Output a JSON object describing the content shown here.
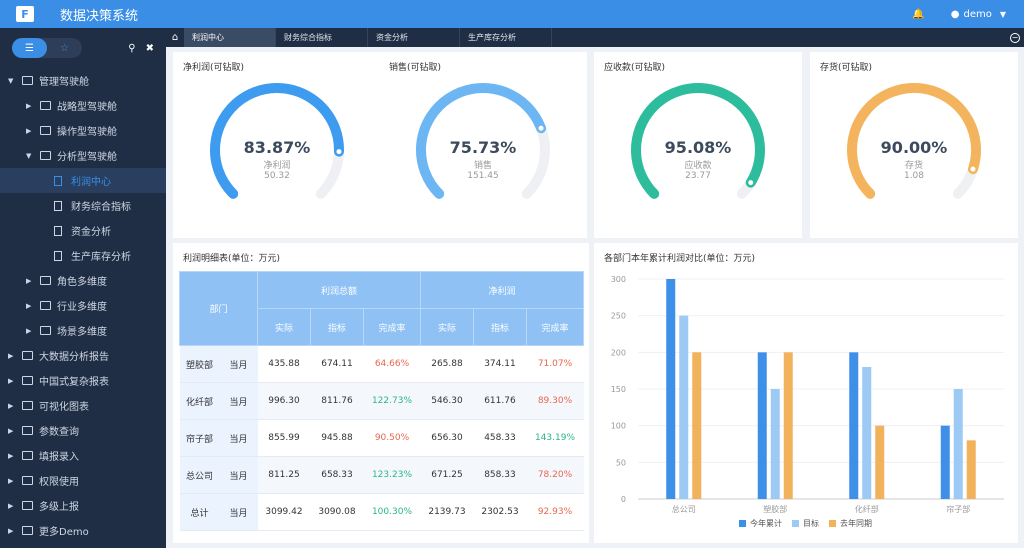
{
  "app": {
    "title": "数据决策系统",
    "user": "demo"
  },
  "sidebar": {
    "items": [
      {
        "label": "管理驾驶舱",
        "level": 0,
        "arrow": "down",
        "type": "folder"
      },
      {
        "label": "战略型驾驶舱",
        "level": 1,
        "arrow": "right",
        "type": "folder"
      },
      {
        "label": "操作型驾驶舱",
        "level": 1,
        "arrow": "right",
        "type": "folder"
      },
      {
        "label": "分析型驾驶舱",
        "level": 1,
        "arrow": "down",
        "type": "folder"
      },
      {
        "label": "利润中心",
        "level": 2,
        "arrow": "",
        "type": "doc",
        "active": true
      },
      {
        "label": "财务综合指标",
        "level": 2,
        "arrow": "",
        "type": "doc"
      },
      {
        "label": "资金分析",
        "level": 2,
        "arrow": "",
        "type": "doc"
      },
      {
        "label": "生产库存分析",
        "level": 2,
        "arrow": "",
        "type": "doc"
      },
      {
        "label": "角色多维度",
        "level": 1,
        "arrow": "right",
        "type": "folder"
      },
      {
        "label": "行业多维度",
        "level": 1,
        "arrow": "right",
        "type": "folder"
      },
      {
        "label": "场景多维度",
        "level": 1,
        "arrow": "right",
        "type": "folder"
      },
      {
        "label": "大数据分析报告",
        "level": 0,
        "arrow": "right",
        "type": "folder"
      },
      {
        "label": "中国式复杂报表",
        "level": 0,
        "arrow": "right",
        "type": "folder"
      },
      {
        "label": "可视化图表",
        "level": 0,
        "arrow": "right",
        "type": "folder"
      },
      {
        "label": "参数查询",
        "level": 0,
        "arrow": "right",
        "type": "folder"
      },
      {
        "label": "填报录入",
        "level": 0,
        "arrow": "right",
        "type": "folder"
      },
      {
        "label": "权限使用",
        "level": 0,
        "arrow": "right",
        "type": "folder"
      },
      {
        "label": "多级上报",
        "level": 0,
        "arrow": "right",
        "type": "folder"
      },
      {
        "label": "更多Demo",
        "level": 0,
        "arrow": "right",
        "type": "folder"
      }
    ]
  },
  "tabs": [
    {
      "label": "利润中心",
      "active": true
    },
    {
      "label": "财务综合指标"
    },
    {
      "label": "资金分析"
    },
    {
      "label": "生产库存分析"
    }
  ],
  "gauges": [
    {
      "title": "净利润(可钻取)",
      "pct": "83.87%",
      "label": "净利润",
      "value": "50.32",
      "fraction": 0.8387,
      "color": "#3d9bf0"
    },
    {
      "title": "销售(可钻取)",
      "pct": "75.73%",
      "label": "销售",
      "value": "151.45",
      "fraction": 0.7573,
      "color": "#6cb7f3"
    },
    {
      "title": "应收款(可钻取)",
      "pct": "95.08%",
      "label": "应收款",
      "value": "23.77",
      "fraction": 0.9508,
      "color": "#2dbd9c"
    },
    {
      "title": "存货(可钻取)",
      "pct": "90.00%",
      "label": "存货",
      "value": "1.08",
      "fraction": 0.9,
      "color": "#f4b45e"
    }
  ],
  "table": {
    "title": "利润明细表(单位：万元)",
    "head": {
      "dept": "部门",
      "g1": "利润总额",
      "g2": "净利润",
      "sub": [
        "实际",
        "指标",
        "完成率",
        "实际",
        "指标",
        "完成率"
      ]
    },
    "rows": [
      {
        "dept": "塑胶部",
        "period": "当月",
        "cells": [
          "435.88",
          "674.11",
          "64.66%",
          "265.88",
          "374.11",
          "71.07%"
        ],
        "c1": "red",
        "c2": "red"
      },
      {
        "dept": "化纤部",
        "period": "当月",
        "cells": [
          "996.30",
          "811.76",
          "122.73%",
          "546.30",
          "611.76",
          "89.30%"
        ],
        "c1": "green",
        "c2": "red"
      },
      {
        "dept": "帘子部",
        "period": "当月",
        "cells": [
          "855.99",
          "945.88",
          "90.50%",
          "656.30",
          "458.33",
          "143.19%"
        ],
        "c1": "red",
        "c2": "green"
      },
      {
        "dept": "总公司",
        "period": "当月",
        "cells": [
          "811.25",
          "658.33",
          "123.23%",
          "671.25",
          "858.33",
          "78.20%"
        ],
        "c1": "green",
        "c2": "red"
      },
      {
        "dept": "总计",
        "period": "当月",
        "cells": [
          "3099.42",
          "3090.08",
          "100.30%",
          "2139.73",
          "2302.53",
          "92.93%"
        ],
        "c1": "green",
        "c2": "red"
      }
    ]
  },
  "chart_data": {
    "type": "bar",
    "title": "各部门本年累计利润对比(单位：万元)",
    "categories": [
      "总公司",
      "塑胶部",
      "化纤部",
      "帘子部"
    ],
    "series": [
      {
        "name": "今年累计",
        "values": [
          300,
          200,
          200,
          100
        ],
        "color": "#3d8fe8"
      },
      {
        "name": "目标",
        "values": [
          250,
          150,
          180,
          150
        ],
        "color": "#9ccaf4"
      },
      {
        "name": "去年同期",
        "values": [
          200,
          200,
          100,
          80
        ],
        "color": "#f2b25c"
      }
    ],
    "ylim": [
      0,
      300
    ],
    "yticks": [
      "0",
      "50",
      "100",
      "150",
      "200",
      "250",
      "300"
    ],
    "legend": "bottom",
    "grid": true
  }
}
